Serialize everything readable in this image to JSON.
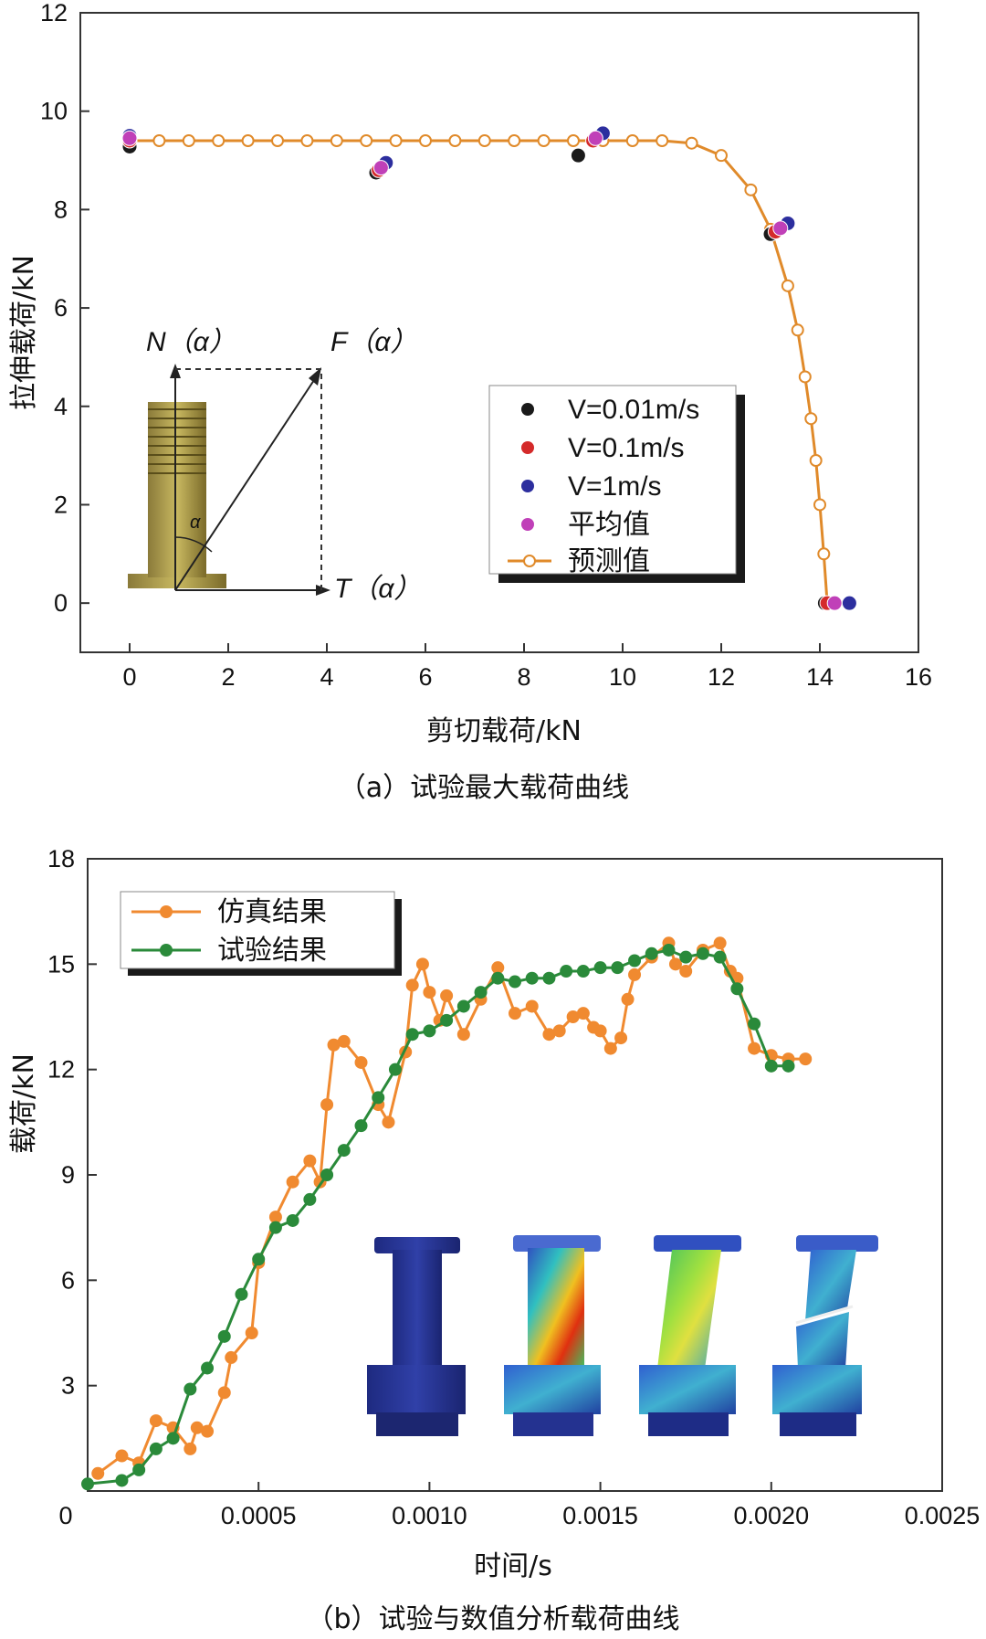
{
  "chart_data": [
    {
      "type": "scatter",
      "caption": "（a）试验最大载荷曲线",
      "xlabel": "剪切载荷/kN",
      "ylabel": "拉伸载荷/kN",
      "xlim": [
        -1,
        16
      ],
      "ylim": [
        -1,
        12
      ],
      "xticks": [
        "0",
        "2",
        "4",
        "6",
        "8",
        "10",
        "12",
        "14",
        "16"
      ],
      "yticks": [
        "0",
        "2",
        "4",
        "6",
        "8",
        "10",
        "12"
      ],
      "legend": [
        "V=0.01m/s",
        "V=0.1m/s",
        "V=1m/s",
        "平均值",
        "预测值"
      ],
      "legend_position": "right-center",
      "colors": {
        "v001": "#1a1a1a",
        "v01": "#d42a2a",
        "v1": "#2c2e9e",
        "avg": "#c040b8",
        "pred": "#e08a2a"
      },
      "series": [
        {
          "name": "V=0.01m/s",
          "points": [
            [
              0,
              9.28
            ],
            [
              5,
              8.75
            ],
            [
              9.1,
              9.1
            ],
            [
              13,
              7.5
            ],
            [
              14.1,
              0
            ]
          ]
        },
        {
          "name": "V=0.1m/s",
          "points": [
            [
              0,
              9.4
            ],
            [
              5.05,
              8.8
            ],
            [
              9.4,
              9.4
            ],
            [
              13.1,
              7.55
            ],
            [
              14.15,
              0
            ]
          ]
        },
        {
          "name": "V=1m/s",
          "points": [
            [
              0,
              9.5
            ],
            [
              5.2,
              8.95
            ],
            [
              9.6,
              9.55
            ],
            [
              13.35,
              7.72
            ],
            [
              14.6,
              0
            ]
          ]
        },
        {
          "name": "平均值",
          "points": [
            [
              0,
              9.45
            ],
            [
              5.1,
              8.85
            ],
            [
              9.45,
              9.45
            ],
            [
              13.2,
              7.62
            ],
            [
              14.3,
              0
            ]
          ]
        },
        {
          "name": "预测值",
          "points": [
            [
              0,
              9.4
            ],
            [
              0.6,
              9.4
            ],
            [
              1.2,
              9.4
            ],
            [
              1.8,
              9.4
            ],
            [
              2.4,
              9.4
            ],
            [
              3,
              9.4
            ],
            [
              3.6,
              9.4
            ],
            [
              4.2,
              9.4
            ],
            [
              4.8,
              9.4
            ],
            [
              5.4,
              9.4
            ],
            [
              6,
              9.4
            ],
            [
              6.6,
              9.4
            ],
            [
              7.2,
              9.4
            ],
            [
              7.8,
              9.4
            ],
            [
              8.4,
              9.4
            ],
            [
              9,
              9.4
            ],
            [
              9.6,
              9.4
            ],
            [
              10.2,
              9.4
            ],
            [
              10.8,
              9.4
            ],
            [
              11.4,
              9.35
            ],
            [
              12,
              9.1
            ],
            [
              12.6,
              8.4
            ],
            [
              13,
              7.6
            ],
            [
              13.35,
              6.45
            ],
            [
              13.55,
              5.55
            ],
            [
              13.7,
              4.6
            ],
            [
              13.82,
              3.75
            ],
            [
              13.92,
              2.9
            ],
            [
              14,
              2.0
            ],
            [
              14.08,
              1.0
            ],
            [
              14.15,
              0
            ]
          ]
        }
      ],
      "inset": {
        "N": "N（α）",
        "F": "F（α）",
        "T": "T（α）",
        "alpha": "α"
      }
    },
    {
      "type": "line",
      "caption": "（b）试验与数值分析载荷曲线",
      "xlabel": "时间/s",
      "ylabel": "载荷/kN",
      "xlim": [
        0,
        0.0025
      ],
      "ylim": [
        0,
        18
      ],
      "xticks": [
        "0",
        "0.0005",
        "0.0010",
        "0.0015",
        "0.0020",
        "0.0025"
      ],
      "yticks": [
        "3",
        "6",
        "9",
        "12",
        "15",
        "18"
      ],
      "legend_position": "top-left",
      "colors": {
        "sim": "#f08a30",
        "test": "#2a8a3a"
      },
      "series": [
        {
          "name": "仿真结果",
          "x": [
            3e-05,
            0.0001,
            0.00015,
            0.0002,
            0.00025,
            0.0003,
            0.00032,
            0.00035,
            0.0004,
            0.00042,
            0.00048,
            0.0005,
            0.00055,
            0.0006,
            0.00065,
            0.00068,
            0.0007,
            0.00072,
            0.00075,
            0.0008,
            0.00085,
            0.00088,
            0.00093,
            0.00095,
            0.00098,
            0.001,
            0.00103,
            0.00105,
            0.0011,
            0.00115,
            0.0012,
            0.00125,
            0.0013,
            0.00135,
            0.00138,
            0.00142,
            0.00145,
            0.00148,
            0.0015,
            0.00153,
            0.00156,
            0.00158,
            0.0016,
            0.00165,
            0.0017,
            0.00172,
            0.00175,
            0.0018,
            0.00185,
            0.00188,
            0.0019,
            0.00195,
            0.002,
            0.00205,
            0.0021
          ],
          "y": [
            0.5,
            1.0,
            0.8,
            2.0,
            1.8,
            1.2,
            1.8,
            1.7,
            2.8,
            3.8,
            4.5,
            6.5,
            7.8,
            8.8,
            9.4,
            8.8,
            11.0,
            12.7,
            12.8,
            12.2,
            11.0,
            10.5,
            12.5,
            14.4,
            15.0,
            14.2,
            13.4,
            14.1,
            13.0,
            14.0,
            14.9,
            13.6,
            13.8,
            13.0,
            13.1,
            13.5,
            13.6,
            13.2,
            13.1,
            12.6,
            12.9,
            14.0,
            14.7,
            15.2,
            15.6,
            15.0,
            14.8,
            15.4,
            15.6,
            14.8,
            14.6,
            12.6,
            12.4,
            12.3,
            12.3
          ]
        },
        {
          "name": "试验结果",
          "x": [
            0.0,
            0.0001,
            0.00015,
            0.0002,
            0.00025,
            0.0003,
            0.00035,
            0.0004,
            0.00045,
            0.0005,
            0.00055,
            0.0006,
            0.00065,
            0.0007,
            0.00075,
            0.0008,
            0.00085,
            0.0009,
            0.00095,
            0.001,
            0.00105,
            0.0011,
            0.00115,
            0.0012,
            0.00125,
            0.0013,
            0.00135,
            0.0014,
            0.00145,
            0.0015,
            0.00155,
            0.0016,
            0.00165,
            0.0017,
            0.00175,
            0.0018,
            0.00185,
            0.0019,
            0.00195,
            0.002,
            0.00205
          ],
          "y": [
            0.2,
            0.3,
            0.6,
            1.2,
            1.5,
            2.9,
            3.5,
            4.4,
            5.6,
            6.6,
            7.5,
            7.7,
            8.3,
            9.0,
            9.7,
            10.4,
            11.2,
            12.0,
            13.0,
            13.1,
            13.4,
            13.8,
            14.2,
            14.6,
            14.5,
            14.6,
            14.6,
            14.8,
            14.8,
            14.9,
            14.9,
            15.1,
            15.3,
            15.4,
            15.2,
            15.3,
            15.2,
            14.3,
            13.3,
            12.1,
            12.1
          ]
        }
      ]
    }
  ]
}
